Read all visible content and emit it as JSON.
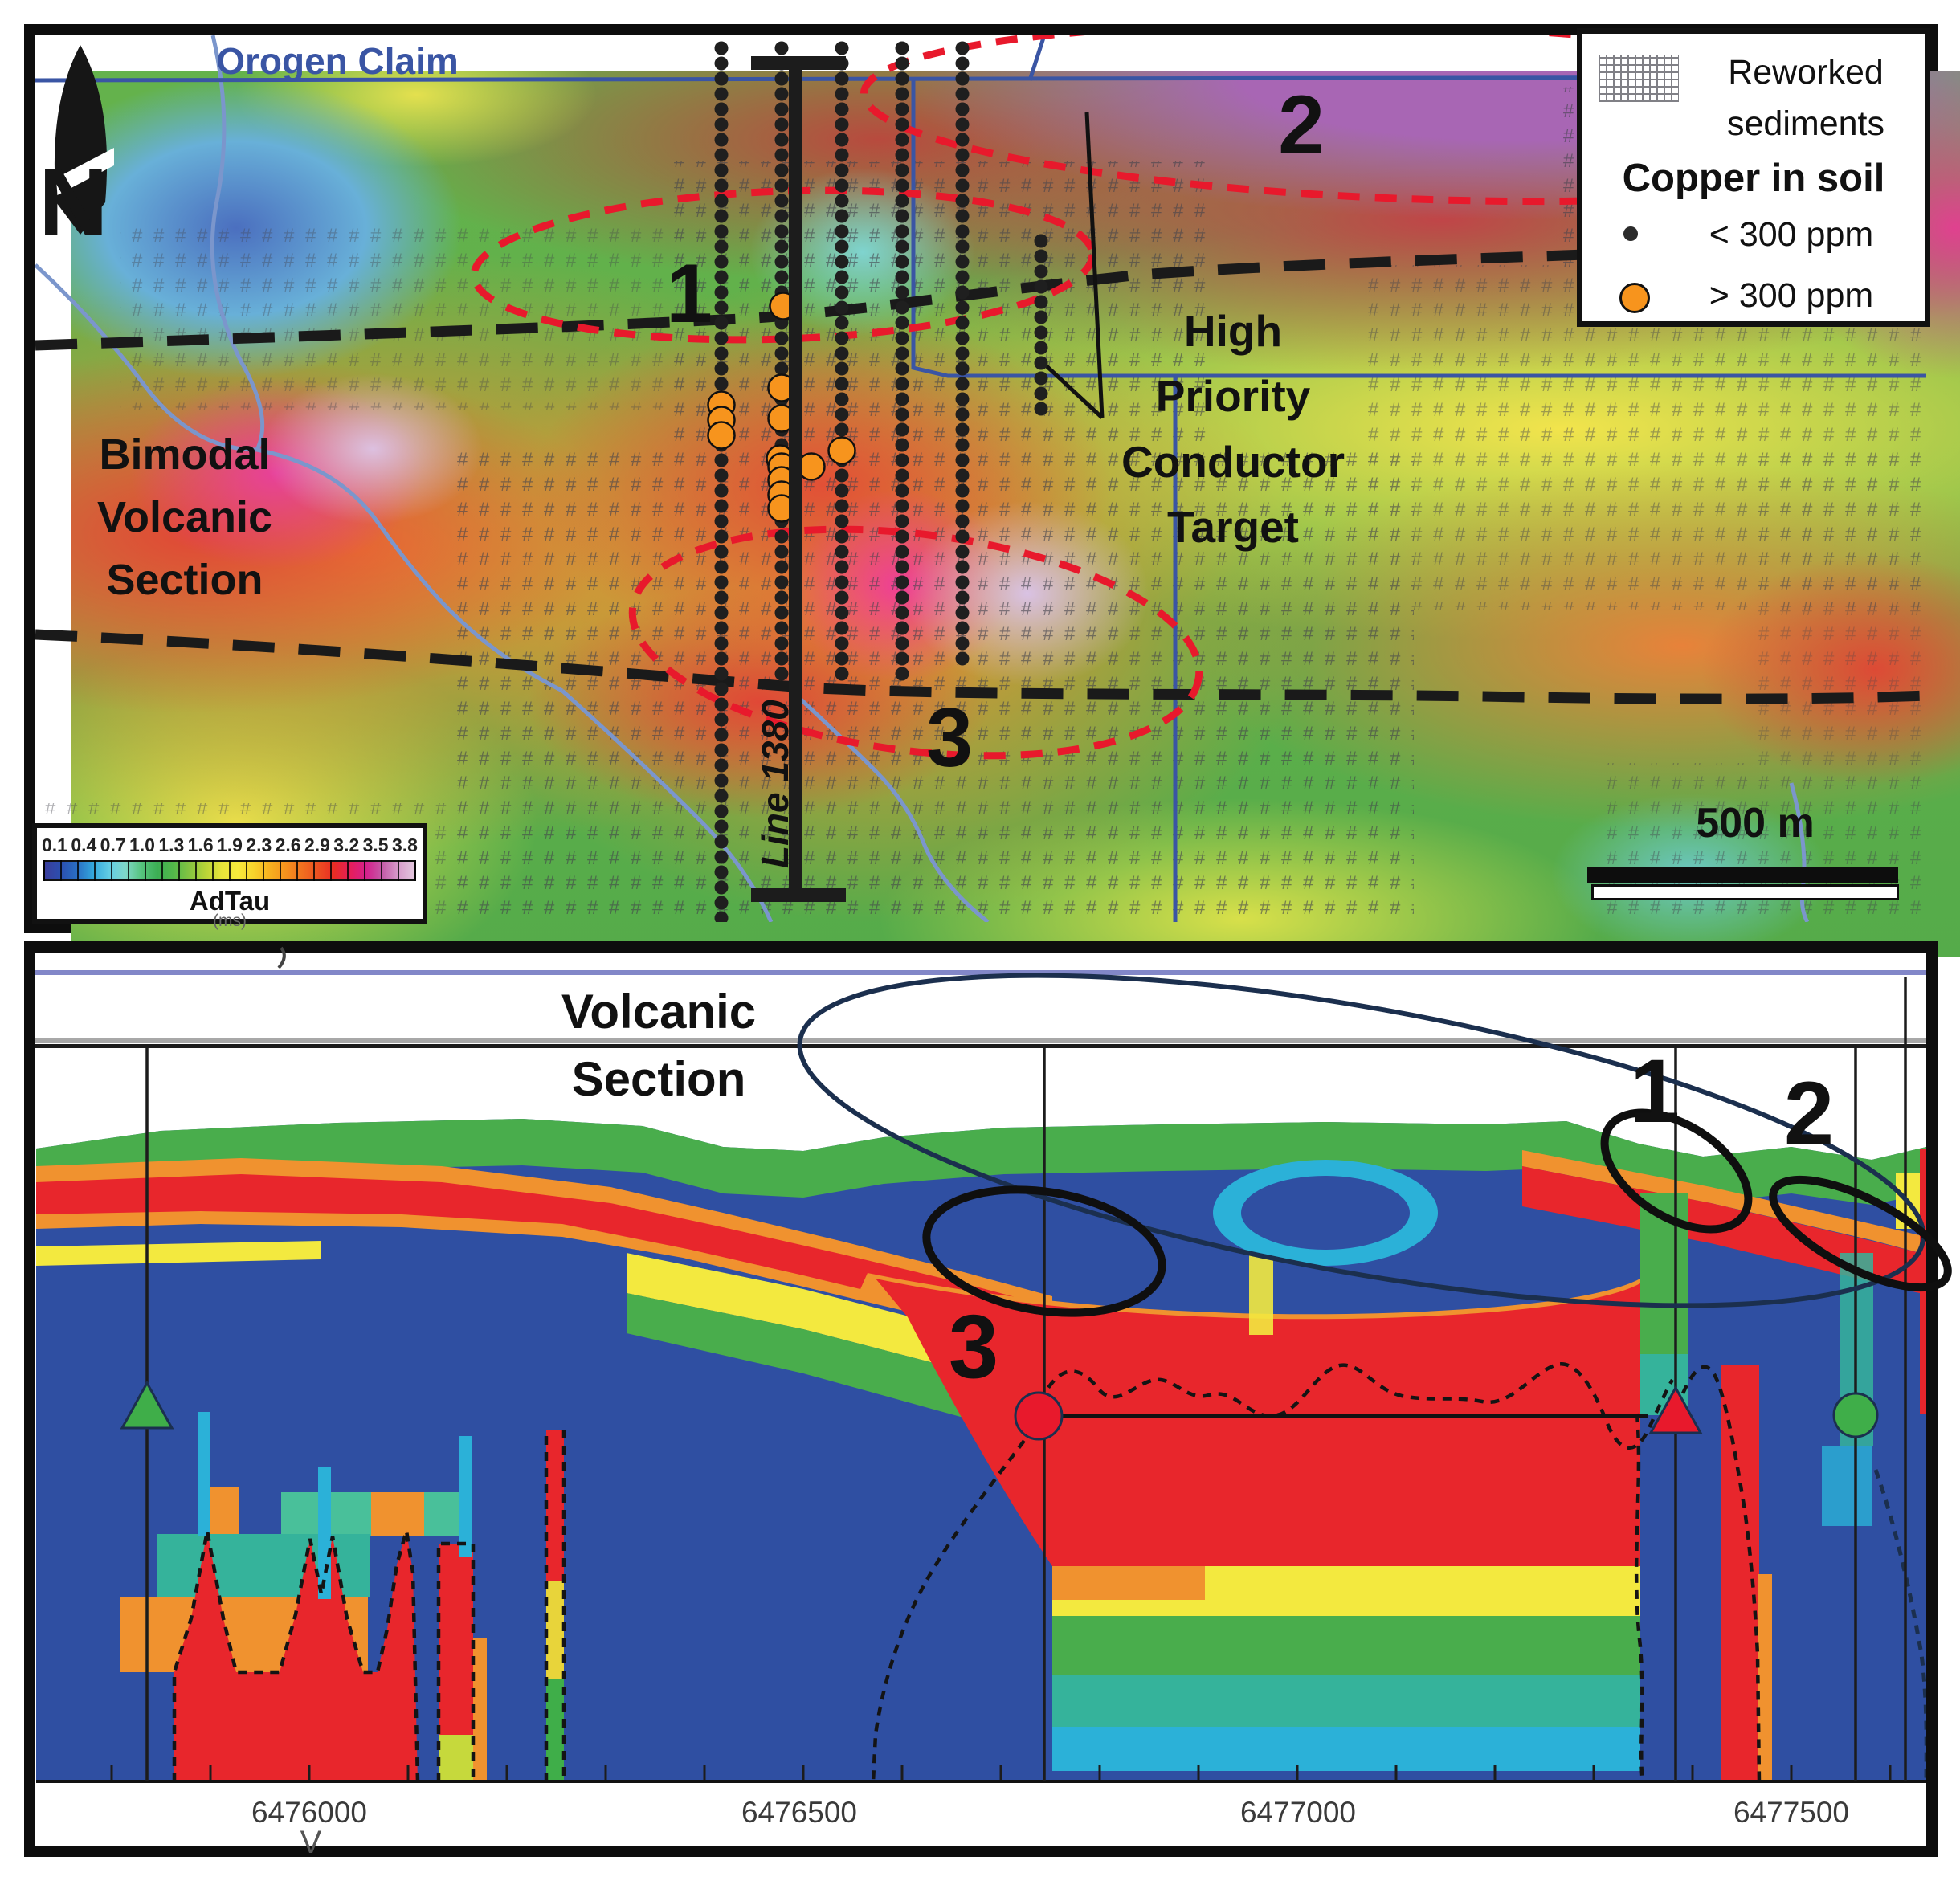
{
  "top_map": {
    "claim_label": "Orogen Claim",
    "north_letter": "N",
    "label_1": "1",
    "label_2": "2",
    "label_3": "3",
    "bimodal_lines": [
      "Bimodal",
      "Volcanic",
      "Section"
    ],
    "conductor_lines": [
      "High",
      "Priority",
      "Conductor",
      "Target"
    ],
    "line_label": "Line 1380",
    "scale_label": "500 m",
    "legend": {
      "reworked_line1": "Reworked",
      "reworked_line2": "sediments",
      "copper_title": "Copper in soil",
      "lt_label": "< 300 ppm",
      "gt_label": "> 300 ppm"
    },
    "colorbar": {
      "title": "AdTau",
      "units": "(ms)",
      "ticks": [
        "0.1",
        "0.4",
        "0.7",
        "1.0",
        "1.3",
        "1.6",
        "1.9",
        "2.3",
        "2.6",
        "2.9",
        "3.2",
        "3.5",
        "3.8"
      ],
      "colors": [
        "#3a3e9c",
        "#2b4fb0",
        "#2a6fc4",
        "#33a7dc",
        "#62cde4",
        "#7fd8c9",
        "#56c47e",
        "#3cae54",
        "#53b84a",
        "#85c441",
        "#b8d437",
        "#e8e53a",
        "#f7ea3c",
        "#f7d32c",
        "#f7b01f",
        "#f5921d",
        "#f1701f",
        "#ed4f21",
        "#e92c24",
        "#e51e5a",
        "#d4208c",
        "#c55ba8",
        "#d89ccb",
        "#e3c8de"
      ]
    },
    "soil_lines": [
      {
        "x": 898,
        "y1": 60,
        "y2": 1145
      },
      {
        "x": 973,
        "y1": 60,
        "y2": 845
      },
      {
        "x": 1048,
        "y1": 60,
        "y2": 845
      },
      {
        "x": 1123,
        "y1": 60,
        "y2": 845
      },
      {
        "x": 1198,
        "y1": 60,
        "y2": 835
      },
      {
        "x": 1296,
        "y1": 300,
        "y2": 520
      }
    ],
    "copper_points": [
      [
        975,
        381
      ],
      [
        898,
        504
      ],
      [
        898,
        523
      ],
      [
        898,
        542
      ],
      [
        973,
        483
      ],
      [
        973,
        521
      ],
      [
        971,
        571
      ],
      [
        973,
        581
      ],
      [
        973,
        598
      ],
      [
        973,
        616
      ],
      [
        973,
        633
      ],
      [
        1010,
        581
      ],
      [
        1048,
        561
      ]
    ],
    "colors": {
      "copper_orange": "#f7941d",
      "target_red": "#e8192c",
      "claim_blue": "#3a55a4"
    }
  },
  "section": {
    "title_line1": "Volcanic",
    "title_line2": "Section",
    "label_1": "1",
    "label_2": "2",
    "label_3": "3",
    "x_ticks": [
      "6476000",
      "6476500",
      "6477000",
      "6477500"
    ],
    "v_marker": "V"
  }
}
